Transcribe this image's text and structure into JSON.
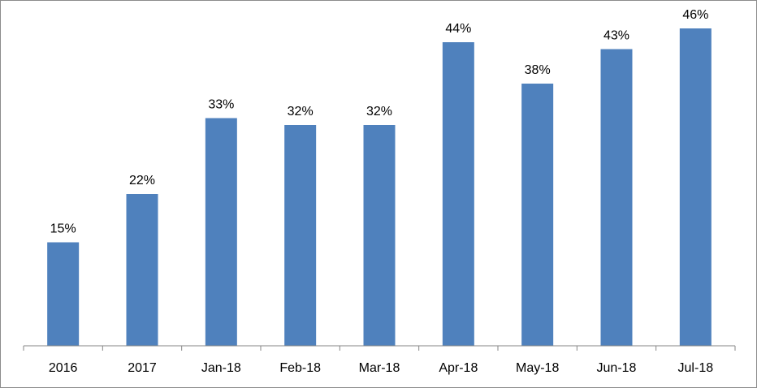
{
  "chart_data": {
    "type": "bar",
    "title": "",
    "xlabel": "",
    "ylabel": "",
    "categories": [
      "2016",
      "2017",
      "Jan-18",
      "Feb-18",
      "Mar-18",
      "Apr-18",
      "May-18",
      "Jun-18",
      "Jul-18"
    ],
    "values": [
      15,
      22,
      33,
      32,
      32,
      44,
      38,
      43,
      46
    ],
    "data_labels": [
      "15%",
      "22%",
      "33%",
      "32%",
      "32%",
      "44%",
      "38%",
      "43%",
      "46%"
    ],
    "ylim": [
      0,
      50
    ],
    "grid": false,
    "legend": "none",
    "bar_color": "#4f81bd"
  }
}
